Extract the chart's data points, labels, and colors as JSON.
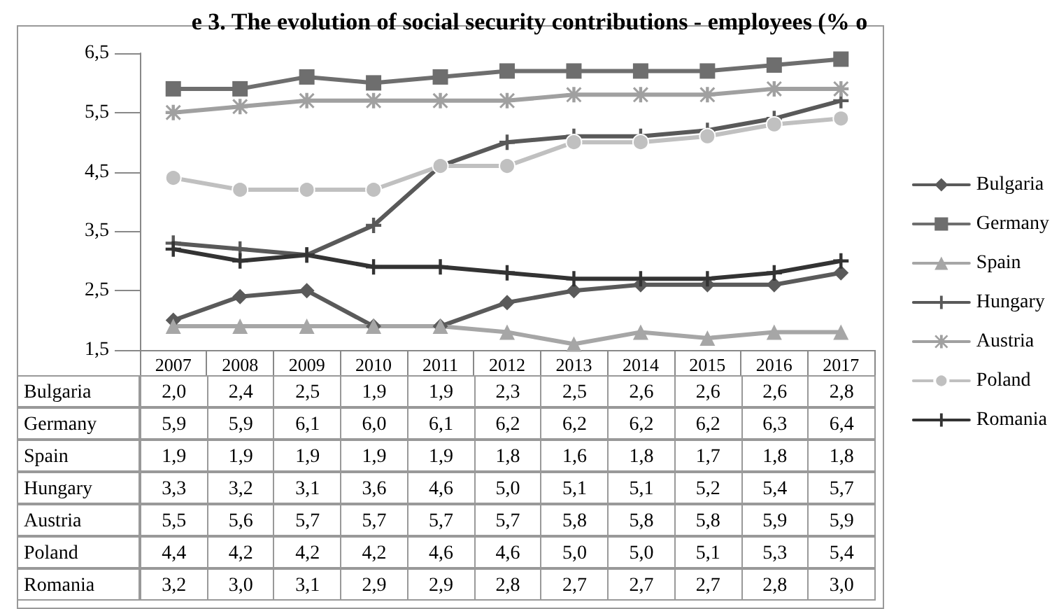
{
  "chart_data": {
    "type": "line",
    "title": "e 3. The evolution of social security contributions - employees (% o",
    "categories": [
      "2007",
      "2008",
      "2009",
      "2010",
      "2011",
      "2012",
      "2013",
      "2014",
      "2015",
      "2016",
      "2017"
    ],
    "ylim": [
      1.5,
      6.5
    ],
    "yticks": [
      {
        "value": 1.5,
        "label": "1,5"
      },
      {
        "value": 2.5,
        "label": "2,5"
      },
      {
        "value": 3.5,
        "label": "3,5"
      },
      {
        "value": 4.5,
        "label": "4,5"
      },
      {
        "value": 5.5,
        "label": "5,5"
      },
      {
        "value": 6.5,
        "label": "6,5"
      }
    ],
    "grid": false,
    "legend": "right",
    "line_style": "solid",
    "series": [
      {
        "name": "Bulgaria",
        "color": "#5a5a5a",
        "marker": "diamond",
        "values": [
          2.0,
          2.4,
          2.5,
          1.9,
          1.9,
          2.3,
          2.5,
          2.6,
          2.6,
          2.6,
          2.8
        ],
        "value_labels": [
          "2,0",
          "2,4",
          "2,5",
          "1,9",
          "1,9",
          "2,3",
          "2,5",
          "2,6",
          "2,6",
          "2,6",
          "2,8"
        ]
      },
      {
        "name": "Germany",
        "color": "#6e6e6e",
        "marker": "square",
        "values": [
          5.9,
          5.9,
          6.1,
          6.0,
          6.1,
          6.2,
          6.2,
          6.2,
          6.2,
          6.3,
          6.4
        ],
        "value_labels": [
          "5,9",
          "5,9",
          "6,1",
          "6,0",
          "6,1",
          "6,2",
          "6,2",
          "6,2",
          "6,2",
          "6,3",
          "6,4"
        ]
      },
      {
        "name": "Spain",
        "color": "#a6a6a6",
        "marker": "triangle",
        "values": [
          1.9,
          1.9,
          1.9,
          1.9,
          1.9,
          1.8,
          1.6,
          1.8,
          1.7,
          1.8,
          1.8
        ],
        "value_labels": [
          "1,9",
          "1,9",
          "1,9",
          "1,9",
          "1,9",
          "1,8",
          "1,6",
          "1,8",
          "1,7",
          "1,8",
          "1,8"
        ]
      },
      {
        "name": "Hungary",
        "color": "#595959",
        "marker": "cross",
        "values": [
          3.3,
          3.2,
          3.1,
          3.6,
          4.6,
          5.0,
          5.1,
          5.1,
          5.2,
          5.4,
          5.7
        ],
        "value_labels": [
          "3,3",
          "3,2",
          "3,1",
          "3,6",
          "4,6",
          "5,0",
          "5,1",
          "5,1",
          "5,2",
          "5,4",
          "5,7"
        ]
      },
      {
        "name": "Austria",
        "color": "#a0a0a0",
        "marker": "star",
        "values": [
          5.5,
          5.6,
          5.7,
          5.7,
          5.7,
          5.7,
          5.8,
          5.8,
          5.8,
          5.9,
          5.9
        ],
        "value_labels": [
          "5,5",
          "5,6",
          "5,7",
          "5,7",
          "5,7",
          "5,7",
          "5,8",
          "5,8",
          "5,8",
          "5,9",
          "5,9"
        ]
      },
      {
        "name": "Poland",
        "color": "#c0c0c0",
        "marker": "circle",
        "values": [
          4.4,
          4.2,
          4.2,
          4.2,
          4.6,
          4.6,
          5.0,
          5.0,
          5.1,
          5.3,
          5.4
        ],
        "value_labels": [
          "4,4",
          "4,2",
          "4,2",
          "4,2",
          "4,6",
          "4,6",
          "5,0",
          "5,0",
          "5,1",
          "5,3",
          "5,4"
        ]
      },
      {
        "name": "Romania",
        "color": "#333333",
        "marker": "cross",
        "values": [
          3.2,
          3.0,
          3.1,
          2.9,
          2.9,
          2.8,
          2.7,
          2.7,
          2.7,
          2.8,
          3.0
        ],
        "value_labels": [
          "3,2",
          "3,0",
          "3,1",
          "2,9",
          "2,9",
          "2,8",
          "2,7",
          "2,7",
          "2,7",
          "2,8",
          "3,0"
        ]
      }
    ]
  }
}
